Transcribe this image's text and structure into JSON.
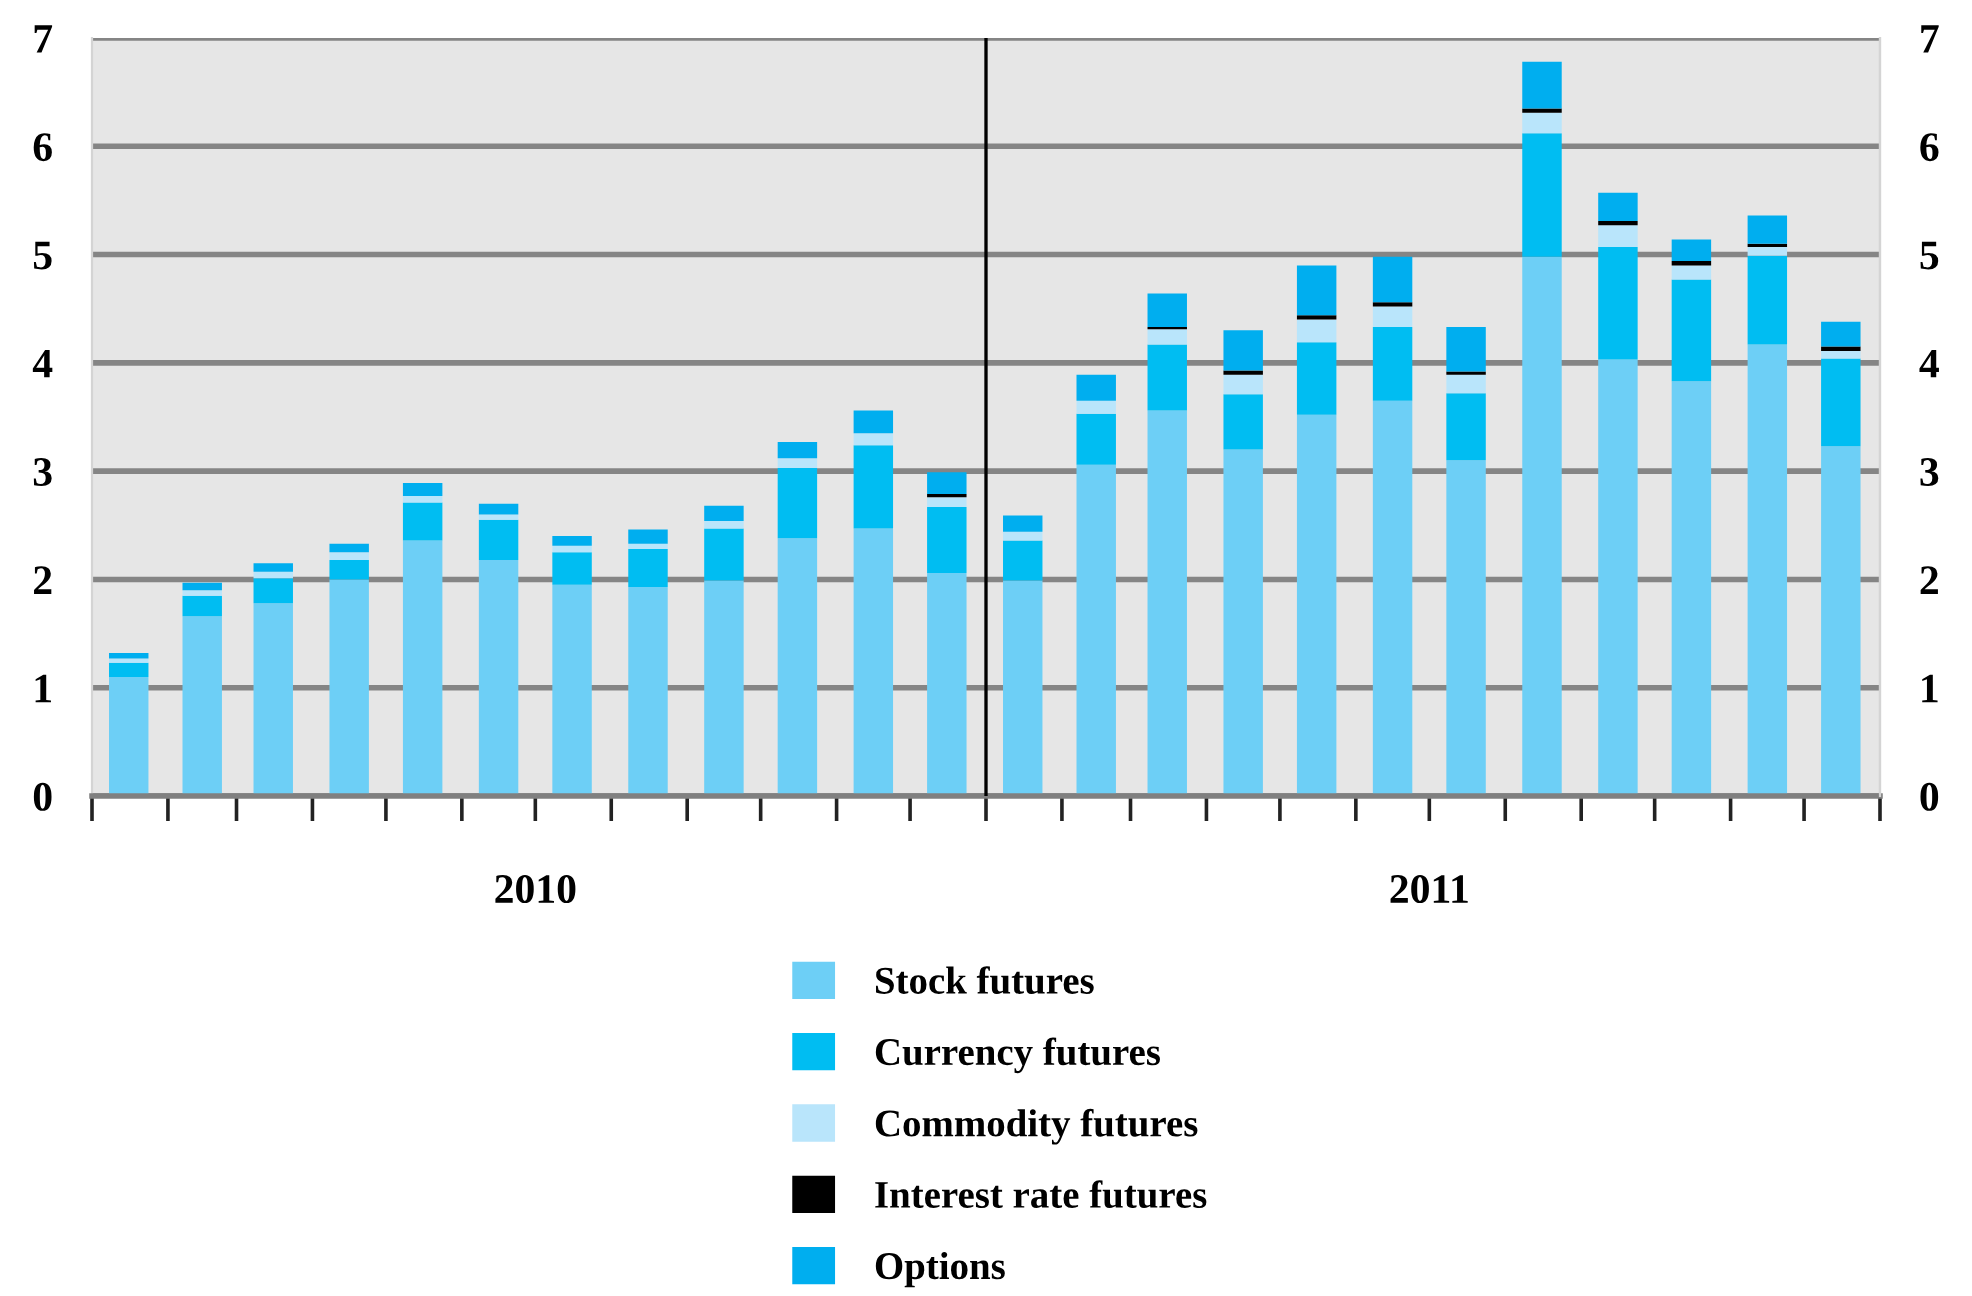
{
  "chart_data": {
    "type": "bar",
    "stacked": true,
    "x": [
      "2010-01-16",
      "2010-02-15",
      "2010-03-16",
      "2010-04-16",
      "2010-05-16",
      "2010-06-16",
      "2010-07-16",
      "2010-08-16",
      "2010-09-16",
      "2010-10-16",
      "2010-11-16",
      "2010-12-16",
      "2011-01-16",
      "2011-02-15",
      "2011-03-16",
      "2011-04-16",
      "2011-05-16",
      "2011-06-16",
      "2011-07-16",
      "2011-08-16",
      "2011-09-16",
      "2011-10-16",
      "2011-11-16",
      "2011-12-16"
    ],
    "series": [
      {
        "name": "Stock futures",
        "color": "#6dcff6",
        "values": [
          1.1,
          1.66,
          1.78,
          2.0,
          2.36,
          2.18,
          1.95,
          1.93,
          1.99,
          2.38,
          2.47,
          2.06,
          1.99,
          3.06,
          3.56,
          3.2,
          3.52,
          3.65,
          3.1,
          4.98,
          4.03,
          3.83,
          4.17,
          3.23
        ]
      },
      {
        "name": "Currency futures",
        "color": "#00bdf2",
        "values": [
          0.13,
          0.19,
          0.23,
          0.18,
          0.35,
          0.37,
          0.3,
          0.35,
          0.48,
          0.65,
          0.77,
          0.61,
          0.37,
          0.47,
          0.61,
          0.51,
          0.67,
          0.68,
          0.62,
          1.14,
          1.04,
          0.94,
          0.82,
          0.81
        ]
      },
      {
        "name": "Commodity futures",
        "color": "#b9e5fb",
        "values": [
          0.04,
          0.05,
          0.06,
          0.07,
          0.06,
          0.05,
          0.06,
          0.05,
          0.07,
          0.09,
          0.11,
          0.09,
          0.08,
          0.12,
          0.14,
          0.18,
          0.21,
          0.19,
          0.17,
          0.19,
          0.2,
          0.13,
          0.08,
          0.07
        ]
      },
      {
        "name": "Interest rate futures",
        "color": "#000000",
        "values": [
          0,
          0,
          0,
          0,
          0,
          0,
          0,
          0,
          0,
          0,
          0,
          0.03,
          0,
          0,
          0.02,
          0.04,
          0.04,
          0.04,
          0.03,
          0.04,
          0.04,
          0.04,
          0.03,
          0.04
        ]
      },
      {
        "name": "Options",
        "color": "#00aeef",
        "values": [
          0.05,
          0.07,
          0.08,
          0.08,
          0.12,
          0.1,
          0.09,
          0.13,
          0.14,
          0.15,
          0.21,
          0.2,
          0.15,
          0.24,
          0.31,
          0.37,
          0.46,
          0.42,
          0.41,
          0.43,
          0.26,
          0.2,
          0.26,
          0.23
        ]
      }
    ],
    "xlim": [
      "2010-01-01",
      "2012-01-01"
    ],
    "xticks": [
      {
        "value": "2010-01-01",
        "label": null
      },
      {
        "value": "2010-02-01",
        "label": null
      },
      {
        "value": "2010-03-01",
        "label": null
      },
      {
        "value": "2010-04-01",
        "label": null
      },
      {
        "value": "2010-05-01",
        "label": null
      },
      {
        "value": "2010-06-01",
        "label": null
      },
      {
        "value": "2010-07-01",
        "label": "2010"
      },
      {
        "value": "2010-08-01",
        "label": null
      },
      {
        "value": "2010-09-01",
        "label": null
      },
      {
        "value": "2010-10-01",
        "label": null
      },
      {
        "value": "2010-11-01",
        "label": null
      },
      {
        "value": "2010-12-01",
        "label": null
      },
      {
        "value": "2011-01-01",
        "label": null
      },
      {
        "value": "2011-02-01",
        "label": null
      },
      {
        "value": "2011-03-01",
        "label": null
      },
      {
        "value": "2011-04-01",
        "label": null
      },
      {
        "value": "2011-05-01",
        "label": null
      },
      {
        "value": "2011-06-01",
        "label": null
      },
      {
        "value": "2011-07-01",
        "label": "2011"
      },
      {
        "value": "2011-08-01",
        "label": null
      },
      {
        "value": "2011-09-01",
        "label": null
      },
      {
        "value": "2011-10-01",
        "label": null
      },
      {
        "value": "2011-11-01",
        "label": null
      },
      {
        "value": "2011-12-01",
        "label": null
      },
      {
        "value": "2012-01-01",
        "label": null
      }
    ],
    "ylim": [
      0,
      7
    ],
    "yticks": [
      0,
      1,
      2,
      3,
      4,
      5,
      6,
      7
    ],
    "y2lim": [
      0,
      7
    ],
    "y2ticks": [
      0,
      1,
      2,
      3,
      4,
      5,
      6,
      7
    ],
    "ref_lines": [
      {
        "axis": "x",
        "value": "2011-01-01",
        "color": "#000000"
      }
    ],
    "grid": "y",
    "legend": "bottom"
  }
}
